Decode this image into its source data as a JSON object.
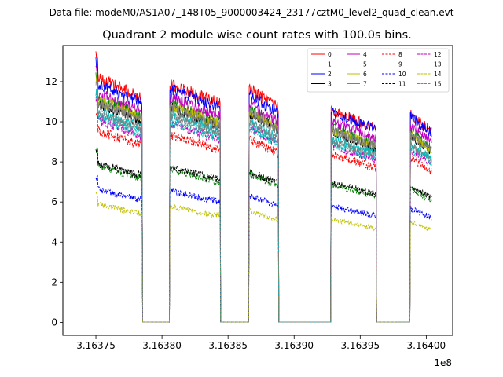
{
  "page": {
    "filename_label": "Data file: modeM0/AS1A07_148T05_9000003424_23177cztM0_level2_quad_clean.evt"
  },
  "chart_data": {
    "type": "line",
    "title": "Quadrant 2 module wise count rates with 100.0s bins.",
    "xlabel": "",
    "ylabel": "",
    "x_offset_label": "1e8",
    "xlim": [
      3.163725,
      3.16402
    ],
    "ylim": [
      -0.65,
      13.8
    ],
    "x_ticks": [
      3.16375,
      3.1638,
      3.16385,
      3.1639,
      3.16395,
      3.164
    ],
    "x_tick_labels": [
      "3.16375",
      "3.16380",
      "3.16385",
      "3.16390",
      "3.16395",
      "3.16400"
    ],
    "y_ticks": [
      0,
      2,
      4,
      6,
      8,
      10,
      12
    ],
    "y_tick_labels": [
      "0",
      "2",
      "4",
      "6",
      "8",
      "10",
      "12"
    ],
    "grid": false,
    "legend_position": "top-right",
    "legend_columns": 4,
    "on_segments": [
      [
        3.16375,
        3.163785
      ],
      [
        3.163806,
        3.163844
      ],
      [
        3.163866,
        3.163888
      ],
      [
        3.163928,
        3.163962
      ],
      [
        3.163988,
        3.164004
      ]
    ],
    "off_level": 0.02,
    "series": [
      {
        "name": "0",
        "color": "#ff0000",
        "dashed": false,
        "segment_levels": [
          11.2,
          10.9,
          10.7,
          9.7,
          9.5
        ]
      },
      {
        "name": "1",
        "color": "#008000",
        "dashed": false,
        "segment_levels": [
          10.3,
          10.0,
          9.8,
          8.9,
          8.7
        ]
      },
      {
        "name": "2",
        "color": "#0000ff",
        "dashed": false,
        "segment_levels": [
          10.9,
          10.7,
          10.4,
          9.6,
          9.4
        ]
      },
      {
        "name": "3",
        "color": "#000000",
        "dashed": false,
        "segment_levels": [
          10.0,
          9.8,
          9.6,
          8.7,
          8.5
        ]
      },
      {
        "name": "4",
        "color": "#bf00bf",
        "dashed": false,
        "segment_levels": [
          10.5,
          10.3,
          10.0,
          9.2,
          9.0
        ]
      },
      {
        "name": "5",
        "color": "#00bfbf",
        "dashed": false,
        "segment_levels": [
          9.7,
          9.5,
          9.2,
          8.4,
          8.2
        ]
      },
      {
        "name": "6",
        "color": "#bfbf00",
        "dashed": false,
        "segment_levels": [
          10.2,
          9.9,
          9.7,
          8.8,
          8.6
        ]
      },
      {
        "name": "7",
        "color": "#808080",
        "dashed": false,
        "segment_levels": [
          10.1,
          9.8,
          9.6,
          8.8,
          8.6
        ]
      },
      {
        "name": "8",
        "color": "#ff0000",
        "dashed": true,
        "segment_levels": [
          8.8,
          8.6,
          8.4,
          7.7,
          7.5
        ]
      },
      {
        "name": "9",
        "color": "#008000",
        "dashed": true,
        "segment_levels": [
          7.2,
          7.0,
          6.8,
          6.3,
          6.1
        ]
      },
      {
        "name": "10",
        "color": "#0000ff",
        "dashed": true,
        "segment_levels": [
          6.1,
          6.0,
          5.8,
          5.3,
          5.2
        ]
      },
      {
        "name": "11",
        "color": "#000000",
        "dashed": true,
        "segment_levels": [
          7.3,
          7.1,
          6.9,
          6.4,
          6.2
        ]
      },
      {
        "name": "12",
        "color": "#bf00bf",
        "dashed": true,
        "segment_levels": [
          9.3,
          9.1,
          8.9,
          8.1,
          7.9
        ]
      },
      {
        "name": "13",
        "color": "#00bfbf",
        "dashed": true,
        "segment_levels": [
          9.4,
          9.2,
          8.9,
          8.2,
          8.0
        ]
      },
      {
        "name": "14",
        "color": "#bfbf00",
        "dashed": true,
        "segment_levels": [
          5.4,
          5.3,
          5.1,
          4.7,
          4.6
        ]
      },
      {
        "name": "15",
        "color": "#808080",
        "dashed": true,
        "segment_levels": [
          9.6,
          9.4,
          9.1,
          8.3,
          8.1
        ]
      }
    ]
  }
}
